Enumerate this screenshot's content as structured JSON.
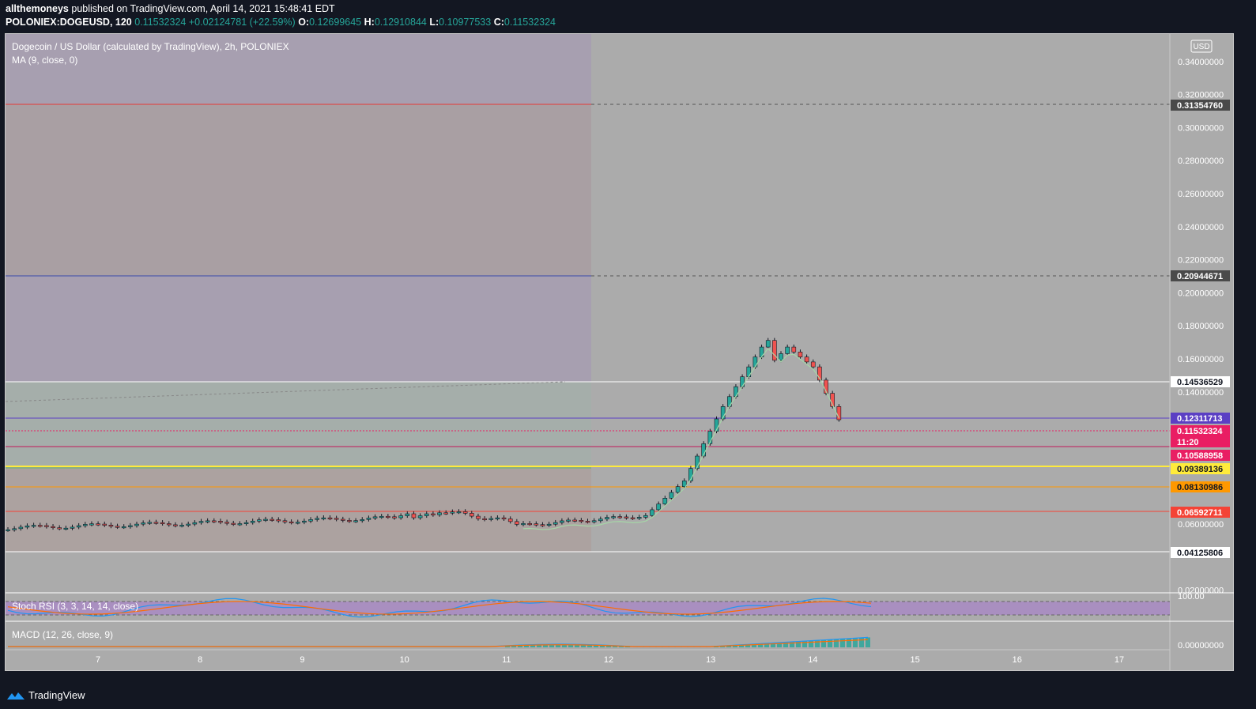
{
  "header": {
    "author": "allthemoneys",
    "published": "published on TradingView.com, April 14, 2021 15:48:41 EDT",
    "symbol": "POLONIEX:DOGEUSD, 120",
    "price": "0.11532324",
    "change": "+0.02124781 (+22.59%)",
    "o_label": "O:",
    "o": "0.12699645",
    "h_label": "H:",
    "h": "0.12910844",
    "l_label": "L:",
    "l": "0.10977533",
    "c_label": "C:",
    "c": "0.11532324"
  },
  "chart_title": "Dogecoin / US Dollar (calculated by TradingView), 2h, POLONIEX",
  "ma_label": "MA (9, close, 0)",
  "currency": "USD",
  "y_ticks": [
    "0.34000000",
    "0.32000000",
    "0.30000000",
    "0.28000000",
    "0.26000000",
    "0.24000000",
    "0.22000000",
    "0.20000000",
    "0.18000000",
    "0.16000000",
    "0.14000000",
    "0.06000000",
    "0.02000000"
  ],
  "price_labels": [
    {
      "text": "0.31354760",
      "bg": "#4a4a4a",
      "fg": "#ffffff"
    },
    {
      "text": "0.20944671",
      "bg": "#4a4a4a",
      "fg": "#ffffff"
    },
    {
      "text": "0.14536529",
      "bg": "#ffffff",
      "fg": "#131722"
    },
    {
      "text": "0.12311713",
      "bg": "#5b3fc4",
      "fg": "#ffffff"
    },
    {
      "text": "0.11532324",
      "bg": "#e91e63",
      "fg": "#ffffff"
    },
    {
      "text": "11:20",
      "bg": "#e91e63",
      "fg": "#ffffff"
    },
    {
      "text": "0.10588958",
      "bg": "#e91e63",
      "fg": "#ffffff"
    },
    {
      "text": "0.09389136",
      "bg": "#ffeb3b",
      "fg": "#131722"
    },
    {
      "text": "0.08130986",
      "bg": "#ff9800",
      "fg": "#131722"
    },
    {
      "text": "0.06592711",
      "bg": "#f44336",
      "fg": "#ffffff"
    },
    {
      "text": "0.04125806",
      "bg": "#ffffff",
      "fg": "#131722"
    }
  ],
  "x_ticks": [
    "7",
    "8",
    "9",
    "10",
    "11",
    "12",
    "13",
    "14",
    "15",
    "16",
    "17"
  ],
  "stoch_label": "Stoch RSI (3, 3, 14, 14, close)",
  "stoch_tick": "100.00",
  "macd_label": "MACD (12, 26, close, 9)",
  "macd_tick": "0.00000000",
  "brand": "TradingView",
  "colors": {
    "up": "#26a69a",
    "down": "#ef5350",
    "ma": "#a5d6a7",
    "stoch_k": "#2196f3",
    "stoch_d": "#ff6d00"
  }
}
